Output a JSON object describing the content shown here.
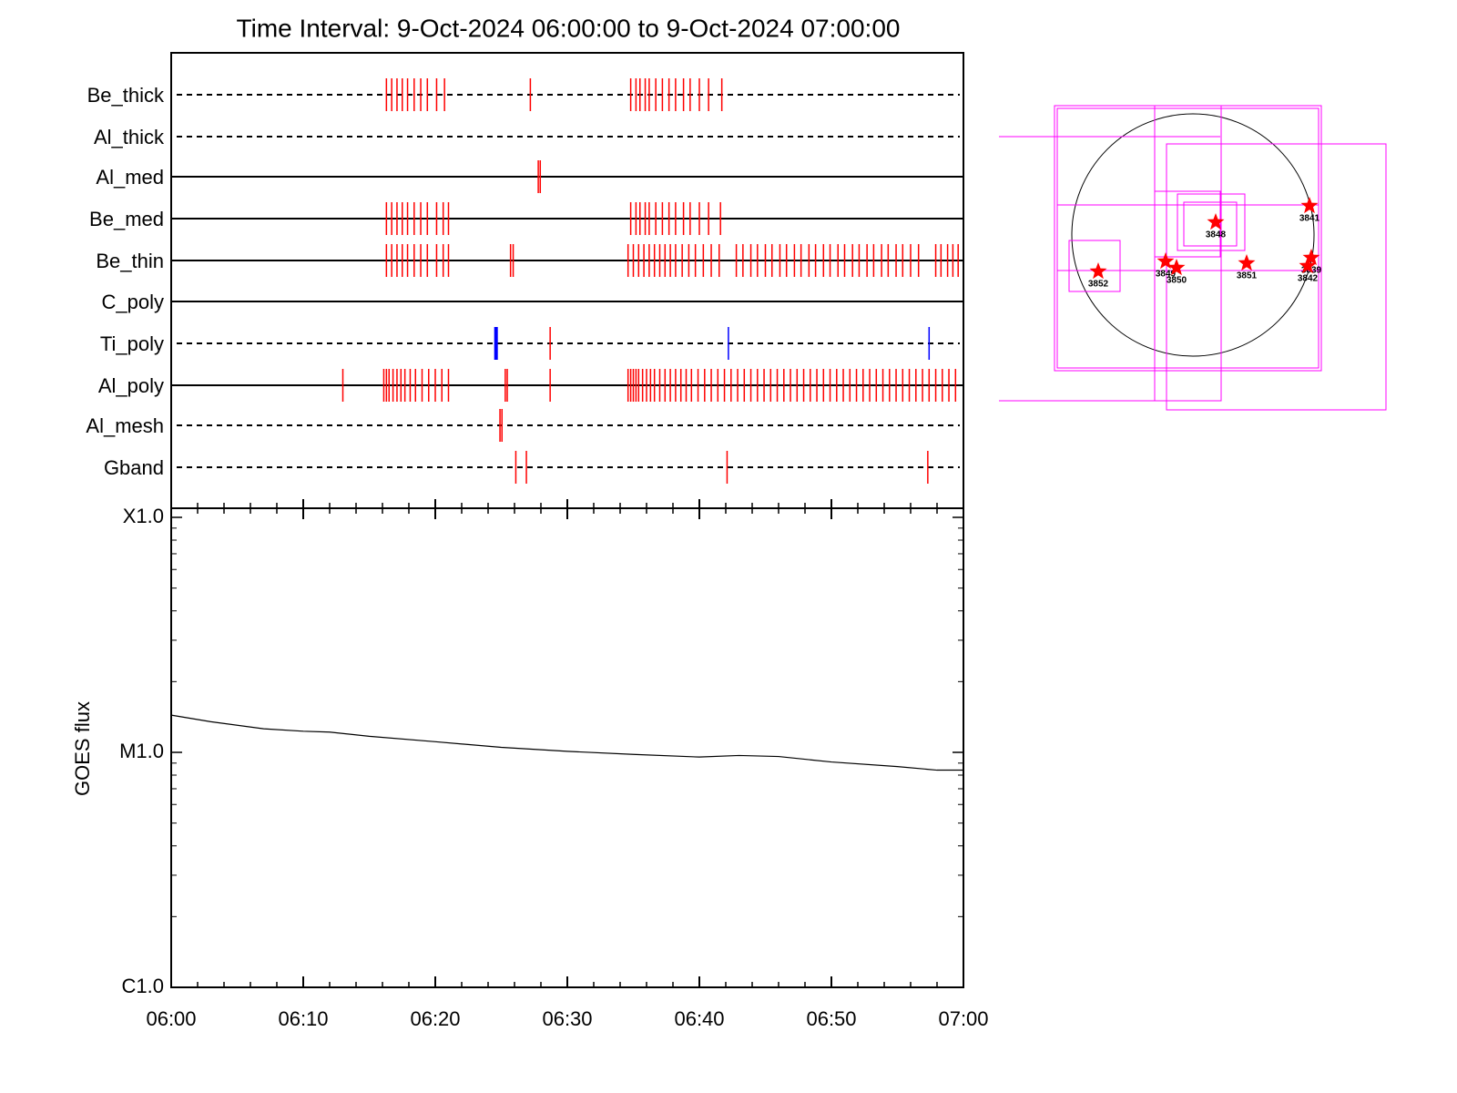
{
  "chart_data": [
    {
      "type": "event_rows",
      "title": "Time Interval:  9-Oct-2024 06:00:00 to  9-Oct-2024 07:00:00",
      "xlim": [
        0,
        60
      ],
      "rows": [
        {
          "name": "Be_thick",
          "line": "dashed",
          "markers": [
            {
              "color": "#ff0000",
              "times": [
                16.3,
                16.7,
                17.1,
                17.5,
                17.9,
                18.4,
                18.9,
                19.4,
                20.1,
                20.7,
                27.2,
                34.8,
                35.2,
                35.5,
                35.9,
                36.2,
                36.7,
                37.2,
                37.7,
                38.2,
                38.8,
                39.3,
                40.0,
                40.7,
                41.7
              ]
            }
          ]
        },
        {
          "name": "Al_thick",
          "line": "dashed",
          "markers": []
        },
        {
          "name": "Al_med",
          "line": "solid",
          "markers": [
            {
              "color": "#ff0000",
              "times": [
                27.8,
                27.95
              ]
            }
          ]
        },
        {
          "name": "Be_med",
          "line": "solid",
          "markers": [
            {
              "color": "#ff0000",
              "times": [
                16.3,
                16.7,
                17.1,
                17.5,
                17.9,
                18.4,
                18.9,
                19.4,
                20.1,
                20.6,
                21.0,
                34.8,
                35.2,
                35.5,
                35.9,
                36.2,
                36.7,
                37.2,
                37.7,
                38.2,
                38.8,
                39.3,
                40.0,
                40.7,
                41.6
              ]
            }
          ]
        },
        {
          "name": "Be_thin",
          "line": "solid",
          "markers": [
            {
              "color": "#ff0000",
              "times": [
                16.3,
                16.7,
                17.1,
                17.5,
                17.9,
                18.4,
                18.9,
                19.4,
                20.1,
                20.6,
                21.0,
                25.7,
                25.9,
                34.6,
                35.0,
                35.4,
                35.8,
                36.2,
                36.6,
                37.0,
                37.4,
                37.8,
                38.2,
                38.7,
                39.2,
                39.7,
                40.3,
                40.9,
                41.5,
                42.8,
                43.3,
                43.9,
                44.4,
                45.0,
                45.5,
                46.1,
                46.6,
                47.2,
                47.7,
                48.3,
                48.8,
                49.4,
                49.9,
                50.5,
                51.0,
                51.6,
                52.1,
                52.7,
                53.2,
                53.8,
                54.3,
                54.9,
                55.4,
                56.0,
                56.6,
                57.9,
                58.3,
                58.8,
                59.2,
                59.6
              ]
            }
          ]
        },
        {
          "name": "C_poly",
          "line": "solid",
          "markers": []
        },
        {
          "name": "Ti_poly",
          "line": "dashed",
          "markers": [
            {
              "color": "#ff0000",
              "times": [
                28.7
              ]
            },
            {
              "color": "#0000ff",
              "times": [
                24.6,
                42.2,
                57.4
              ]
            }
          ]
        },
        {
          "name": "Al_poly",
          "line": "solid",
          "markers": [
            {
              "color": "#ff0000",
              "times": [
                13.0,
                16.1,
                16.3,
                16.5,
                16.8,
                17.1,
                17.4,
                17.7,
                18.1,
                18.5,
                19.0,
                19.5,
                20.0,
                20.5,
                21.0,
                25.3,
                25.45,
                28.7,
                34.6,
                34.8,
                35.0,
                35.2,
                35.4,
                35.7,
                36.0,
                36.3,
                36.6,
                37.0,
                37.4,
                37.8,
                38.2,
                38.6,
                39.0,
                39.4,
                39.9,
                40.4,
                40.9,
                41.4,
                41.9,
                42.4,
                42.9,
                43.4,
                43.9,
                44.4,
                44.9,
                45.4,
                45.9,
                46.4,
                46.9,
                47.4,
                47.9,
                48.4,
                48.9,
                49.4,
                49.9,
                50.4,
                50.9,
                51.4,
                51.9,
                52.4,
                52.9,
                53.4,
                53.9,
                54.4,
                54.9,
                55.4,
                55.9,
                56.4,
                56.9,
                57.4,
                57.9,
                58.4,
                58.9,
                59.4
              ]
            }
          ]
        },
        {
          "name": "Al_mesh",
          "line": "dashed",
          "markers": [
            {
              "color": "#ff0000",
              "times": [
                24.9,
                25.05
              ]
            }
          ]
        },
        {
          "name": "Gband",
          "line": "dashed",
          "markers": [
            {
              "color": "#ff0000",
              "times": [
                26.1,
                26.9,
                42.1,
                57.3
              ]
            }
          ]
        }
      ]
    },
    {
      "type": "line",
      "y_label": "GOES flux",
      "log_scale": true,
      "color": "#000000",
      "x": [
        0,
        3,
        7,
        10,
        12,
        15,
        20,
        25,
        30,
        35,
        40,
        43,
        46,
        50,
        55,
        58,
        60
      ],
      "values": [
        1.44e-05,
        1.35e-05,
        1.26e-05,
        1.23e-05,
        1.22e-05,
        1.17e-05,
        1.11e-05,
        1.05e-05,
        1.01e-05,
        9.8e-06,
        9.55e-06,
        9.7e-06,
        9.6e-06,
        9.1e-06,
        8.7e-06,
        8.4e-06,
        8.4e-06
      ],
      "xlim": [
        0,
        60
      ],
      "xticks": [
        {
          "value": 0,
          "label": "06:00"
        },
        {
          "value": 10,
          "label": "06:10"
        },
        {
          "value": 20,
          "label": "06:20"
        },
        {
          "value": 30,
          "label": "06:30"
        },
        {
          "value": 40,
          "label": "06:40"
        },
        {
          "value": 50,
          "label": "06:50"
        },
        {
          "value": 60,
          "label": "07:00"
        }
      ],
      "xminor_ticks": [
        2,
        4,
        6,
        8,
        12,
        14,
        16,
        18,
        22,
        24,
        26,
        28,
        32,
        34,
        36,
        38,
        42,
        44,
        46,
        48,
        52,
        54,
        56,
        58
      ],
      "ylim": [
        1e-06,
        0.0001
      ],
      "yticks": [
        {
          "value": 1e-06,
          "label": "C1.0"
        },
        {
          "value": 1e-05,
          "label": "M1.0"
        },
        {
          "value": 0.0001,
          "label": "X1.0"
        }
      ],
      "yminor_ticks": [
        2e-06,
        3e-06,
        4e-06,
        5e-06,
        6e-06,
        7e-06,
        8e-06,
        9e-06,
        2e-05,
        3e-05,
        4e-05,
        5e-05,
        6e-05,
        7e-05,
        8e-05,
        9e-05
      ]
    },
    {
      "type": "solar_map",
      "regions": [
        "3852",
        "3849",
        "3850",
        "3848",
        "3851",
        "3841",
        "3839",
        "3842"
      ]
    }
  ]
}
